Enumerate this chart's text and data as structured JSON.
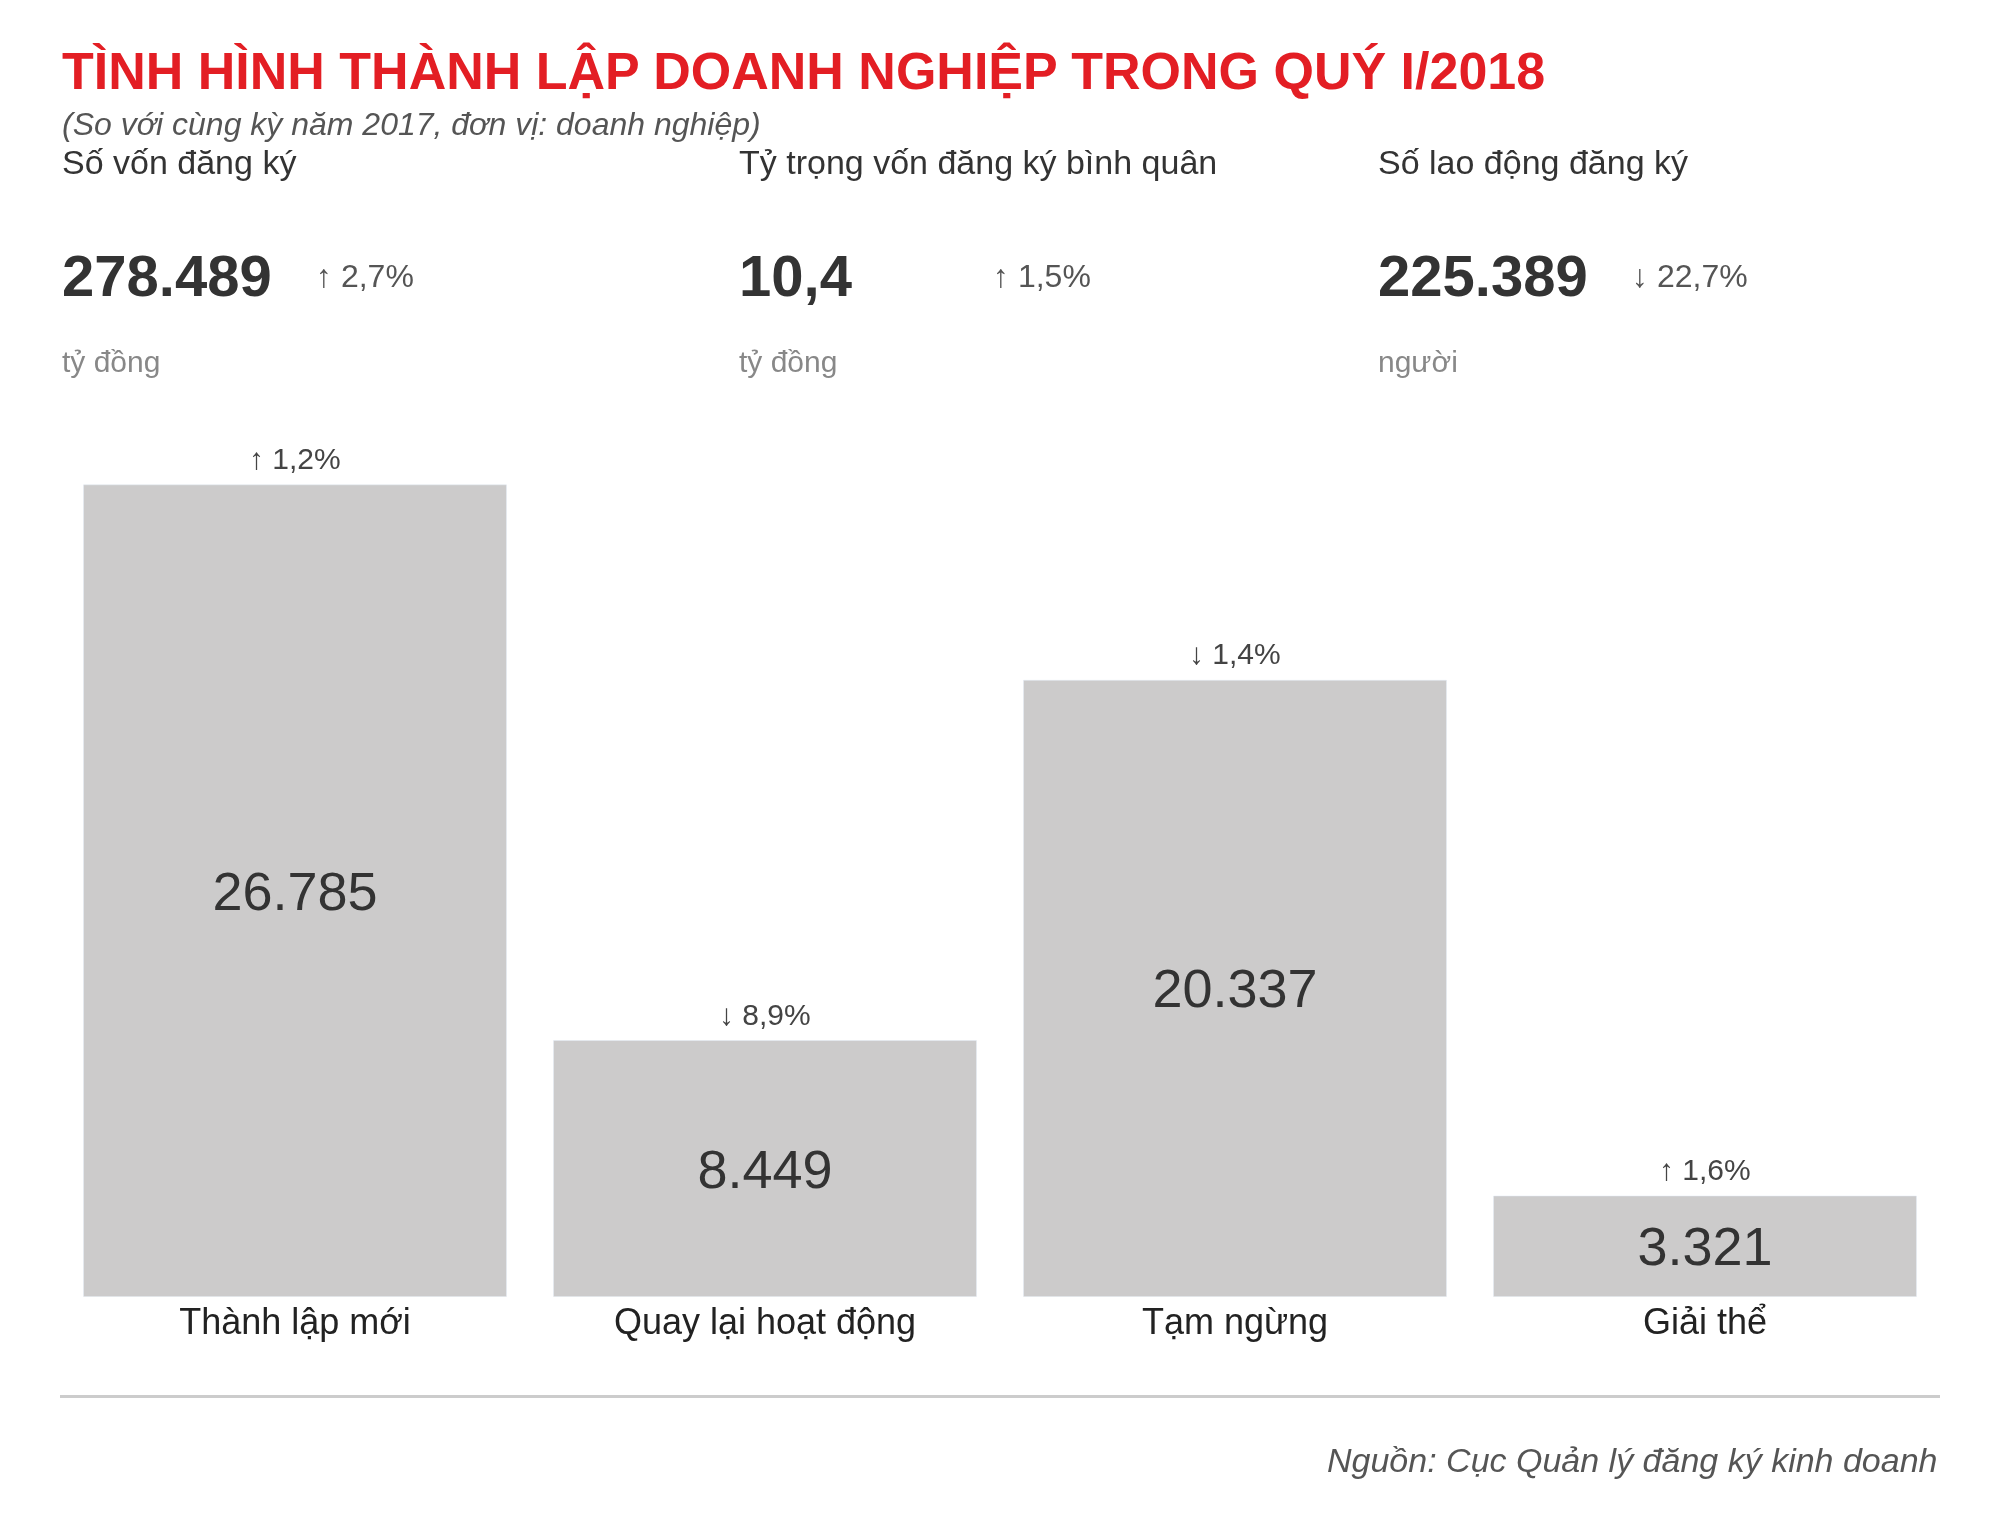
{
  "chart_data": [
    {
      "type": "other",
      "title": "Số vốn đăng ký",
      "annotations": [
        "278.489",
        "↑ 2,7%",
        "tỷ đồng"
      ]
    },
    {
      "type": "other",
      "title": "Tỷ trọng vốn đăng ký bình quân",
      "annotations": [
        "10,4",
        "↑ 1,5%",
        "tỷ đồng"
      ]
    },
    {
      "type": "other",
      "title": "Số lao động đăng ký",
      "annotations": [
        "225.389",
        "↓ 22,7%",
        "người"
      ]
    },
    {
      "type": "bar",
      "title": "TÌNH HÌNH THÀNH LẬP DOANH NGHIỆP TRONG QUÝ I/2018",
      "subtitle": "(So với cùng kỳ năm 2017, đơn vị: doanh nghiệp)",
      "categories": [
        "Thành lập mới",
        "Quay lại hoạt động",
        "Tạm ngừng",
        "Giải thể"
      ],
      "values": [
        26785,
        8449,
        20337,
        3321
      ],
      "color": "#cccbcb",
      "value_labels": [
        "26.785",
        "8.449",
        "20.337",
        "3.321"
      ],
      "annotations": [
        "↑ 1,2%",
        "↓ 8,9%",
        "↓ 1,4%",
        "↑ 1,6%",
        "Nguồn: Cục Quản lý đăng ký kinh doanh"
      ]
    }
  ]
}
